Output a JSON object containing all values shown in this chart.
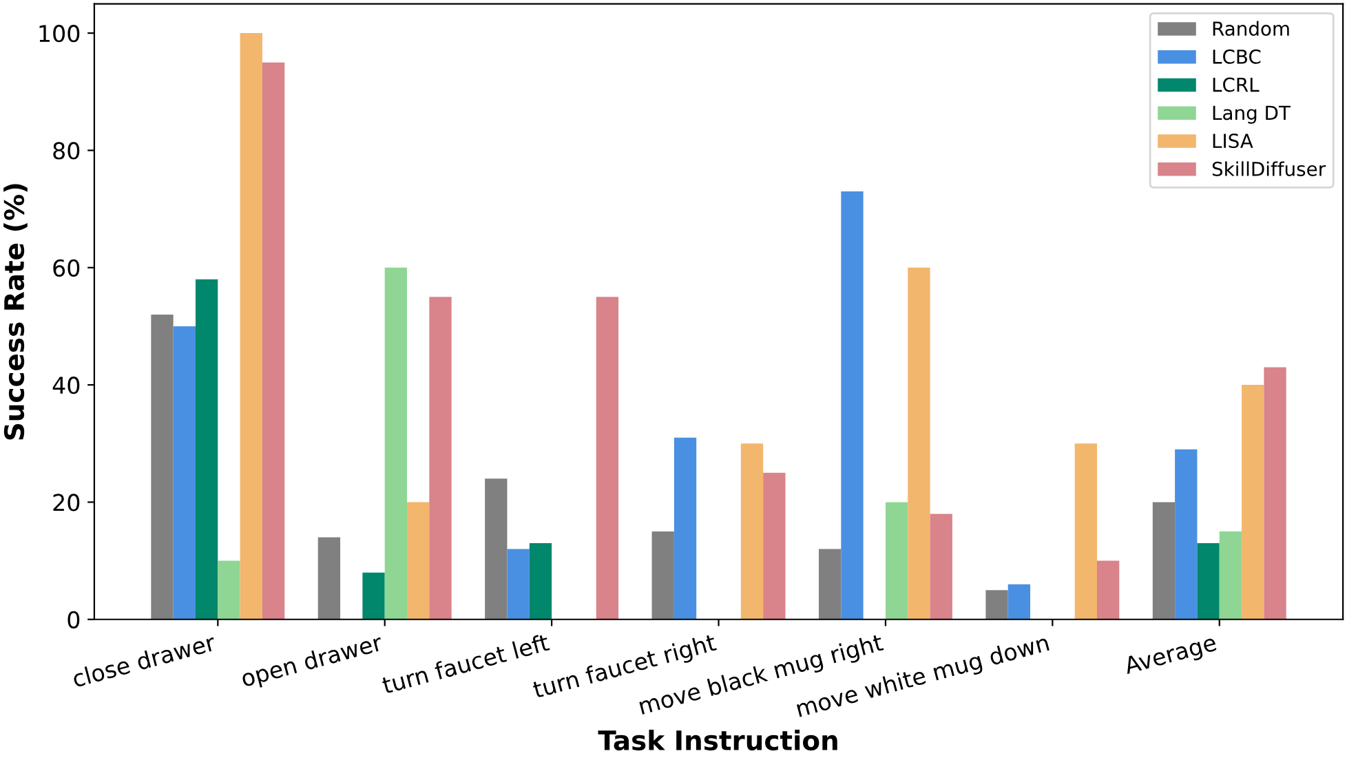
{
  "chart_data": {
    "type": "bar",
    "xlabel": "Task Instruction",
    "ylabel": "Success Rate (%)",
    "categories": [
      "close drawer",
      "open drawer",
      "turn faucet left",
      "turn faucet right",
      "move black mug right",
      "move white mug down",
      "Average"
    ],
    "series": [
      {
        "name": "Random",
        "color": "#808080",
        "values": [
          52,
          14,
          24,
          15,
          12,
          5,
          20
        ]
      },
      {
        "name": "LCBC",
        "color": "#4a90e2",
        "values": [
          50,
          0,
          12,
          31,
          73,
          6,
          29
        ]
      },
      {
        "name": "LCRL",
        "color": "#00876c",
        "values": [
          58,
          8,
          13,
          0,
          0,
          0,
          13
        ]
      },
      {
        "name": "Lang DT",
        "color": "#8fd694",
        "values": [
          10,
          60,
          0,
          0,
          20,
          0,
          15
        ]
      },
      {
        "name": "LISA",
        "color": "#f2b66d",
        "values": [
          100,
          20,
          0,
          30,
          60,
          30,
          40
        ]
      },
      {
        "name": "SkillDiffuser",
        "color": "#d9838a",
        "values": [
          95,
          55,
          55,
          25,
          18,
          10,
          43
        ]
      }
    ],
    "ylim": [
      0,
      105
    ],
    "yticks": [
      0,
      20,
      40,
      60,
      80,
      100
    ],
    "grid": false,
    "legend": "top right"
  }
}
